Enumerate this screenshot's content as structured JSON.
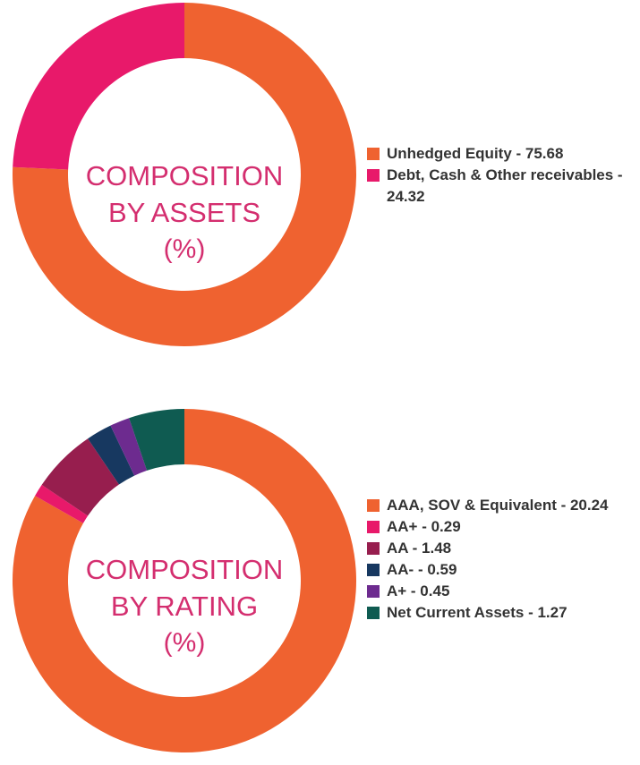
{
  "chart_data": [
    {
      "type": "pie",
      "center_text": [
        "COMPOSITION",
        "BY ASSETS",
        "(%)"
      ],
      "colors": {
        "center_text": "#d42e6f"
      },
      "slices": [
        {
          "label": "Unhedged Equity - 75.68",
          "value": 75.68,
          "color": "#ef6230"
        },
        {
          "label": "Debt, Cash & Other receivables - 24.32",
          "value": 24.32,
          "color": "#e8196a"
        }
      ],
      "legend_position": "right"
    },
    {
      "type": "pie",
      "center_text": [
        "COMPOSITION",
        "BY RATING",
        "(%)"
      ],
      "colors": {
        "center_text": "#d42e6f"
      },
      "slices": [
        {
          "label": "AAA, SOV & Equivalent - 20.24",
          "value": 20.24,
          "color": "#ef6230"
        },
        {
          "label": "AA+ - 0.29",
          "value": 0.29,
          "color": "#e8196a"
        },
        {
          "label": "AA - 1.48",
          "value": 1.48,
          "color": "#971e4e"
        },
        {
          "label": "AA- - 0.59",
          "value": 0.59,
          "color": "#173860"
        },
        {
          "label": "A+ - 0.45",
          "value": 0.45,
          "color": "#6d2b8f"
        },
        {
          "label": "Net Current Assets - 1.27",
          "value": 1.27,
          "color": "#0f5b51"
        }
      ],
      "legend_position": "right"
    }
  ]
}
